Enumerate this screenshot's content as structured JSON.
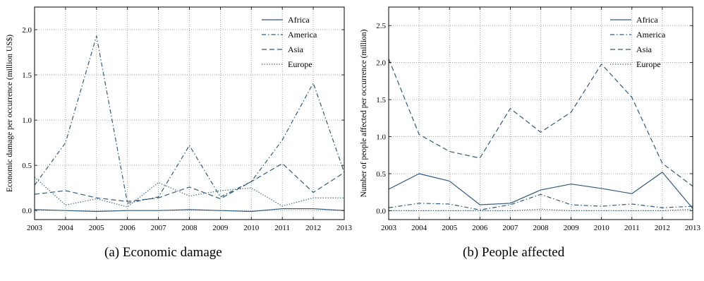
{
  "colors": {
    "series": "#2f5a80",
    "axis": "#000000",
    "grid": "#8a8a8a"
  },
  "captions": [
    "(a) Economic damage",
    "(b) People affected"
  ],
  "chart_data": [
    {
      "type": "line",
      "title": "",
      "caption": "(a) Economic damage",
      "xlabel": "",
      "ylabel": "Economic damage per occurrence (million US$)",
      "x": [
        2003,
        2004,
        2005,
        2006,
        2007,
        2008,
        2009,
        2010,
        2011,
        2012,
        2013
      ],
      "xlim": [
        2003,
        2013
      ],
      "ylim": [
        -0.1,
        2.25
      ],
      "yticks": [
        0.0,
        0.5,
        1.0,
        1.5,
        2.0
      ],
      "ytick_labels": [
        "0.0",
        "0.5",
        "1.0",
        "1.5",
        "2.0"
      ],
      "xtick_labels": [
        "2003",
        "2004",
        "2005",
        "2006",
        "2007",
        "2008",
        "2009",
        "2010",
        "2011",
        "2012",
        "2013"
      ],
      "grid": true,
      "legend": "top-right",
      "series": [
        {
          "name": "Africa",
          "dash": "solid",
          "values": [
            0.01,
            0.0,
            -0.01,
            0.0,
            0.0,
            0.01,
            0.0,
            -0.01,
            0.02,
            0.02,
            0.0
          ]
        },
        {
          "name": "America",
          "dash": "dashdot",
          "values": [
            0.28,
            0.75,
            1.93,
            0.08,
            0.15,
            0.72,
            0.15,
            0.32,
            0.78,
            1.41,
            0.42
          ]
        },
        {
          "name": "Asia",
          "dash": "dashed",
          "values": [
            0.18,
            0.22,
            0.14,
            0.1,
            0.14,
            0.26,
            0.13,
            0.32,
            0.52,
            0.2,
            0.42
          ]
        },
        {
          "name": "Europe",
          "dash": "dotted",
          "values": [
            0.37,
            0.06,
            0.13,
            0.04,
            0.31,
            0.16,
            0.22,
            0.25,
            0.05,
            0.14,
            0.14
          ]
        }
      ]
    },
    {
      "type": "line",
      "title": "",
      "caption": "(b) People affected",
      "xlabel": "",
      "ylabel": "Number of people affected per occurrence (million)",
      "x": [
        2003,
        2004,
        2005,
        2006,
        2007,
        2008,
        2009,
        2010,
        2011,
        2012,
        2013
      ],
      "xlim": [
        2003,
        2013
      ],
      "ylim": [
        -0.12,
        2.75
      ],
      "yticks": [
        0.0,
        0.5,
        1.0,
        1.5,
        2.0,
        2.5
      ],
      "ytick_labels": [
        "0.0",
        "0.5",
        "1.0",
        "1.5",
        "2.0",
        "2.5"
      ],
      "xtick_labels": [
        "2003",
        "2004",
        "2005",
        "2006",
        "2007",
        "2008",
        "2009",
        "2010",
        "2011",
        "2012",
        "2013"
      ],
      "grid": true,
      "legend": "top-right",
      "series": [
        {
          "name": "Africa",
          "dash": "solid",
          "values": [
            0.29,
            0.5,
            0.4,
            0.08,
            0.1,
            0.28,
            0.36,
            0.3,
            0.23,
            0.52,
            0.03
          ]
        },
        {
          "name": "America",
          "dash": "dashdot",
          "values": [
            0.04,
            0.1,
            0.09,
            0.01,
            0.08,
            0.22,
            0.08,
            0.06,
            0.09,
            0.04,
            0.06
          ]
        },
        {
          "name": "Asia",
          "dash": "dashed",
          "values": [
            2.05,
            1.03,
            0.8,
            0.71,
            1.38,
            1.06,
            1.33,
            1.98,
            1.53,
            0.64,
            0.33
          ]
        },
        {
          "name": "Europe",
          "dash": "dotted",
          "values": [
            0.0,
            0.0,
            0.0,
            0.0,
            0.0,
            0.02,
            0.0,
            0.0,
            0.0,
            0.0,
            0.02
          ]
        }
      ]
    }
  ]
}
